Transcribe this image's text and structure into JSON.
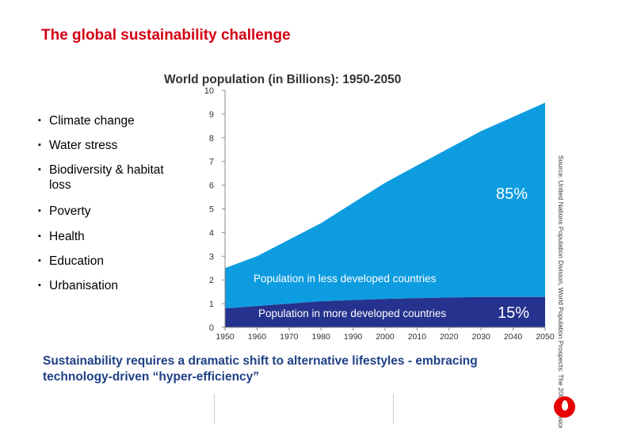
{
  "slide": {
    "title": "The global sustainability challenge",
    "bullets": [
      "Climate change",
      "Water stress",
      "Biodiversity & habitat loss",
      "Poverty",
      "Health",
      "Education",
      "Urbanisation"
    ],
    "bullet_marker": "▪",
    "footer_line1": "Sustainability requires a dramatic shift to alternative lifestyles  - embracing",
    "footer_line2": "technology-driven “hyper-efficiency”",
    "logo_icon": "vodafone-logo-icon"
  },
  "colors": {
    "title": "#d40012",
    "footer_text": "#1f3f86",
    "less_developed_area": "#0d9ce0",
    "more_developed_area": "#25328e",
    "logo": "#e60000"
  },
  "chart_data": {
    "type": "area",
    "stacked": true,
    "title": "World population (in Billions): 1950-2050",
    "x": [
      1950,
      1960,
      1970,
      1980,
      1990,
      2000,
      2010,
      2020,
      2030,
      2040,
      2050
    ],
    "xlabel": "",
    "ylabel": "",
    "xlim": [
      1950,
      2050
    ],
    "ylim": [
      0,
      10
    ],
    "yticks": [
      0,
      1,
      2,
      3,
      4,
      5,
      6,
      7,
      8,
      9,
      10
    ],
    "grid": false,
    "series": [
      {
        "name": "Population in more developed countries",
        "values": [
          0.8,
          0.9,
          1.0,
          1.1,
          1.15,
          1.2,
          1.23,
          1.26,
          1.28,
          1.28,
          1.28
        ],
        "color": "#25328e",
        "share_label": "15%"
      },
      {
        "name": "Population in less developed countries",
        "values": [
          1.7,
          2.1,
          2.7,
          3.3,
          4.1,
          4.9,
          5.6,
          6.3,
          7.0,
          7.6,
          8.2
        ],
        "color": "#0d9ce0",
        "share_label": "85%"
      }
    ],
    "source_note": "Source: United Nations Population Division, World Population Prospects: The 2006 Revision"
  }
}
